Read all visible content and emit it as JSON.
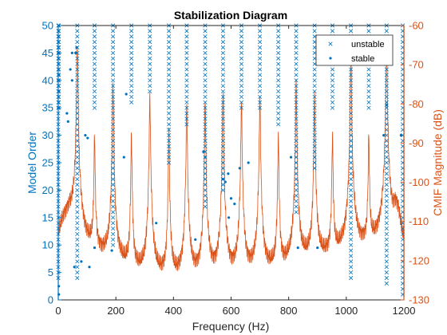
{
  "chart_data": {
    "type": "scatter",
    "title": "Stabilization Diagram",
    "xlabel": "Frequency (Hz)",
    "ylabel_left": "Model Order",
    "ylabel_right": "CMIF Magnitude (dB)",
    "xlim": [
      0,
      1200
    ],
    "ylim_left": [
      0,
      50
    ],
    "ylim_right": [
      -130,
      -60
    ],
    "xticks": [
      "0",
      "200",
      "400",
      "600",
      "800",
      "1000",
      "1200"
    ],
    "yticks_left": [
      "0",
      "5",
      "10",
      "15",
      "20",
      "25",
      "30",
      "35",
      "40",
      "45",
      "50"
    ],
    "yticks_right": [
      "-130",
      "-120",
      "-110",
      "-100",
      "-90",
      "-80",
      "-70",
      "-60"
    ],
    "legend_position": "top-right",
    "colors": {
      "blue": "#0072BD",
      "orange": "#D95319",
      "axis": "#262626"
    },
    "series": [
      {
        "name": "unstable",
        "marker": "x",
        "columns": [
          {
            "x": 0,
            "orders": [
              4,
              50
            ]
          },
          {
            "x": 2,
            "orders": [
              35,
              50
            ]
          },
          {
            "x": 66,
            "orders": [
              4,
              50
            ]
          },
          {
            "x": 126,
            "orders": [
              35,
              50
            ]
          },
          {
            "x": 190,
            "orders": [
              10,
              50
            ]
          },
          {
            "x": 254,
            "orders": [
              36,
              50
            ]
          },
          {
            "x": 318,
            "orders": [
              38,
              50
            ]
          },
          {
            "x": 384,
            "orders": [
              25,
              50
            ]
          },
          {
            "x": 446,
            "orders": [
              32,
              50
            ]
          },
          {
            "x": 510,
            "orders": [
              17,
              50
            ]
          },
          {
            "x": 572,
            "orders": [
              20,
              50
            ]
          },
          {
            "x": 636,
            "orders": [
              35,
              50
            ]
          },
          {
            "x": 700,
            "orders": [
              35,
              50
            ]
          },
          {
            "x": 764,
            "orders": [
              32,
              50
            ]
          },
          {
            "x": 826,
            "orders": [
              16,
              50
            ]
          },
          {
            "x": 890,
            "orders": [
              24,
              50
            ]
          },
          {
            "x": 952,
            "orders": [
              35,
              50
            ]
          },
          {
            "x": 1016,
            "orders": [
              4,
              50
            ]
          },
          {
            "x": 1078,
            "orders": [
              35,
              50
            ]
          },
          {
            "x": 1140,
            "orders": [
              3,
              50
            ]
          },
          {
            "x": 1196,
            "orders": [
              1,
              50
            ]
          }
        ]
      },
      {
        "name": "stable",
        "marker": "point",
        "points": [
          [
            2,
            1
          ],
          [
            2,
            2.5
          ],
          [
            0,
            35
          ],
          [
            2,
            38
          ],
          [
            0,
            40
          ],
          [
            2,
            41
          ],
          [
            0,
            45
          ],
          [
            30,
            34
          ],
          [
            34,
            32.5
          ],
          [
            42,
            42
          ],
          [
            48,
            45
          ],
          [
            48,
            40
          ],
          [
            56,
            6
          ],
          [
            60,
            45
          ],
          [
            64,
            46
          ],
          [
            80,
            7
          ],
          [
            94,
            30
          ],
          [
            102,
            29.5
          ],
          [
            108,
            6
          ],
          [
            126,
            9.5
          ],
          [
            186,
            9
          ],
          [
            228,
            26
          ],
          [
            236,
            37.5
          ],
          [
            340,
            14
          ],
          [
            476,
            11
          ],
          [
            504,
            27
          ],
          [
            510,
            26
          ],
          [
            572,
            22
          ],
          [
            580,
            21.5
          ],
          [
            590,
            23
          ],
          [
            592,
            15
          ],
          [
            600,
            18.5
          ],
          [
            612,
            17.5
          ],
          [
            630,
            24
          ],
          [
            660,
            25
          ],
          [
            808,
            26
          ],
          [
            832,
            9.5
          ],
          [
            900,
            9.5
          ],
          [
            1130,
            30
          ],
          [
            1140,
            35.5
          ],
          [
            1190,
            30
          ]
        ]
      }
    ],
    "cmif_curve": {
      "baseline": [
        [
          0,
          -114
        ],
        [
          10,
          -111
        ],
        [
          20,
          -109
        ],
        [
          30,
          -108
        ],
        [
          40,
          -107
        ],
        [
          50,
          -109
        ],
        [
          60,
          -112
        ],
        [
          80,
          -116
        ],
        [
          100,
          -117
        ],
        [
          150,
          -119
        ],
        [
          200,
          -121
        ],
        [
          250,
          -123
        ],
        [
          300,
          -124.5
        ],
        [
          350,
          -125
        ],
        [
          400,
          -125.5
        ],
        [
          450,
          -125.5
        ],
        [
          500,
          -125.5
        ],
        [
          550,
          -125
        ],
        [
          600,
          -125
        ],
        [
          650,
          -124.5
        ],
        [
          700,
          -124
        ],
        [
          750,
          -123
        ],
        [
          800,
          -122
        ],
        [
          850,
          -121
        ],
        [
          900,
          -120
        ],
        [
          950,
          -119
        ],
        [
          1000,
          -118
        ],
        [
          1050,
          -117
        ],
        [
          1100,
          -116
        ],
        [
          1130,
          -115
        ],
        [
          1150,
          -113
        ],
        [
          1160,
          -110
        ],
        [
          1170,
          -106
        ],
        [
          1180,
          -107
        ],
        [
          1190,
          -112
        ],
        [
          1200,
          -116
        ]
      ],
      "peaks": [
        [
          66,
          -65
        ],
        [
          126,
          -88
        ],
        [
          190,
          -75
        ],
        [
          254,
          -88
        ],
        [
          318,
          -78
        ],
        [
          384,
          -87
        ],
        [
          446,
          -80
        ],
        [
          510,
          -79
        ],
        [
          572,
          -77
        ],
        [
          636,
          -79
        ],
        [
          700,
          -78
        ],
        [
          764,
          -88
        ],
        [
          826,
          -75
        ],
        [
          890,
          -78
        ],
        [
          952,
          -88
        ],
        [
          1016,
          -68
        ],
        [
          1078,
          -88
        ],
        [
          1140,
          -64
        ]
      ]
    }
  }
}
